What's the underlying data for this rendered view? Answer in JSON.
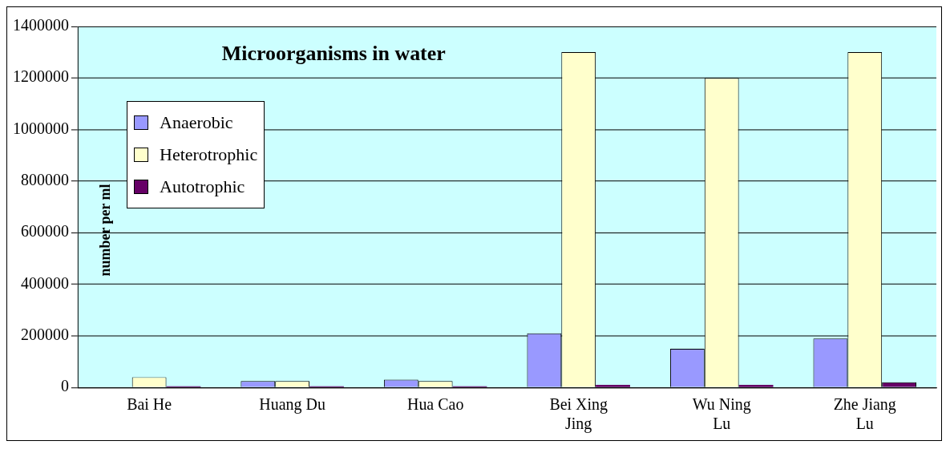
{
  "chart_data": {
    "type": "bar",
    "title": "Microorganisms in water",
    "ylabel": "number per ml",
    "categories": [
      "Bai He",
      "Huang Du",
      "Hua Cao",
      "Bei Xing Jing",
      "Wu Ning Lu",
      "Zhe Jiang Lu"
    ],
    "series": [
      {
        "name": "Anaerobic",
        "color": "#9999ff",
        "values": [
          0,
          25000,
          30000,
          210000,
          150000,
          190000
        ]
      },
      {
        "name": "Heterotrophic",
        "color": "#ffffcc",
        "values": [
          40000,
          25000,
          25000,
          1300000,
          1200000,
          1300000
        ]
      },
      {
        "name": "Autotrophic",
        "color": "#660066",
        "values": [
          5000,
          5000,
          5000,
          10000,
          10000,
          20000
        ]
      }
    ],
    "ylim": [
      0,
      1400000
    ],
    "yticks": [
      0,
      200000,
      400000,
      600000,
      800000,
      1000000,
      1200000,
      1400000
    ],
    "grid": "y",
    "legend": "top left"
  }
}
